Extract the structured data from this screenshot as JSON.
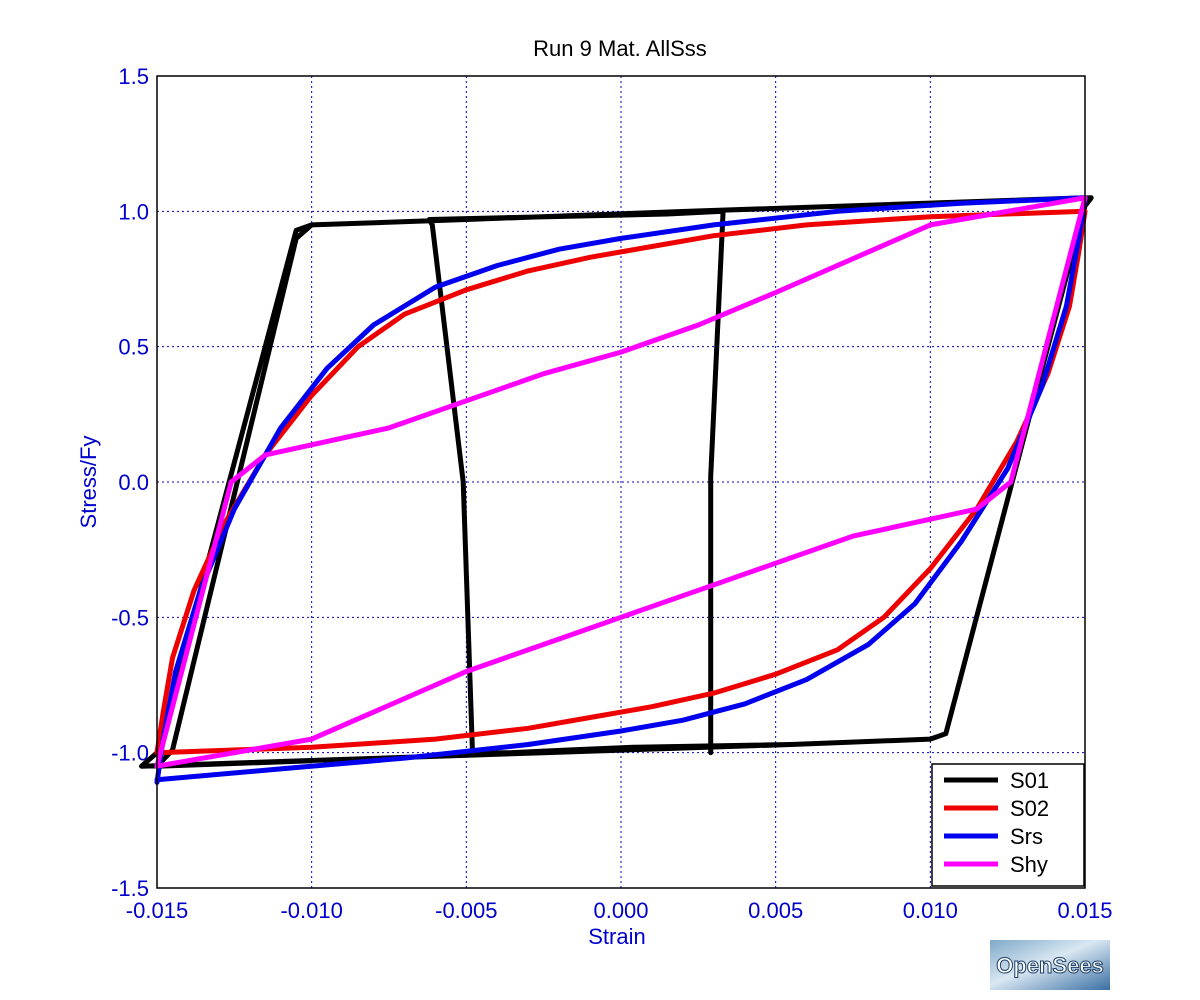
{
  "chart_data": {
    "type": "line",
    "title": "Run 9   Mat. AllSss",
    "xlabel": "Strain",
    "ylabel": "Stress/Fy",
    "xlim": [
      -0.015,
      0.015
    ],
    "ylim": [
      -1.5,
      1.5
    ],
    "xticks": [
      -0.015,
      -0.01,
      -0.005,
      0.0,
      0.005,
      0.01,
      0.015
    ],
    "xtick_labels": [
      "-0.015",
      "-0.010",
      "-0.005",
      "0.000",
      "0.005",
      "0.010",
      "0.015"
    ],
    "yticks": [
      -1.5,
      -1.0,
      -0.5,
      0.0,
      0.5,
      1.0,
      1.5
    ],
    "ytick_labels": [
      "-1.5",
      "-1.0",
      "-0.5",
      "0.0",
      "0.5",
      "1.0",
      "1.5"
    ],
    "grid": true,
    "legend_position": "bottom-right",
    "series": [
      {
        "name": "S01",
        "color": "#000000",
        "x": [
          -0.01,
          -0.015,
          -0.0145,
          -0.0105,
          -0.01,
          -0.005,
          0.0022,
          0.0152,
          0.015,
          0.0105,
          0.01,
          0.0055,
          -0.0025,
          -0.0155,
          -0.015,
          -0.0105,
          -0.01,
          -0.005,
          0.0022,
          0.015,
          0.015,
          0.0105,
          0.01,
          0.0055,
          0.0004,
          -0.0017,
          -0.0036,
          -0.0048,
          -0.0051,
          -0.0061,
          -0.0062,
          0.0015,
          0.0033,
          0.0029,
          0.0029
        ],
        "y": [
          -1.03,
          -1.05,
          -0.99,
          0.9,
          0.95,
          0.97,
          1.0,
          1.05,
          1.02,
          -0.93,
          -0.95,
          -0.97,
          -1.0,
          -1.05,
          -1.0,
          0.93,
          0.95,
          0.97,
          1.0,
          1.05,
          1.02,
          -0.93,
          -0.95,
          -0.97,
          -0.98,
          -0.99,
          -1.0,
          -1.0,
          0.0,
          0.95,
          0.97,
          0.99,
          1.0,
          0.02,
          -1.0
        ]
      },
      {
        "name": "S02",
        "color": "#ee0000",
        "x": [
          -0.015,
          -0.0148,
          -0.0145,
          -0.0138,
          -0.0128,
          -0.0115,
          -0.01,
          -0.0085,
          -0.007,
          -0.005,
          -0.003,
          -0.001,
          0.0,
          0.001,
          0.003,
          0.006,
          0.01,
          0.015,
          0.0148,
          0.0145,
          0.0138,
          0.0128,
          0.0115,
          0.01,
          0.0085,
          0.007,
          0.005,
          0.003,
          0.001,
          -0.001,
          -0.003,
          -0.006,
          -0.01,
          -0.015
        ],
        "y": [
          -1.0,
          -0.85,
          -0.65,
          -0.4,
          -0.15,
          0.1,
          0.32,
          0.5,
          0.62,
          0.71,
          0.78,
          0.83,
          0.85,
          0.87,
          0.91,
          0.95,
          0.98,
          1.0,
          0.85,
          0.65,
          0.4,
          0.15,
          -0.1,
          -0.32,
          -0.5,
          -0.62,
          -0.71,
          -0.78,
          -0.83,
          -0.87,
          -0.91,
          -0.95,
          -0.98,
          -1.0
        ]
      },
      {
        "name": "Srs",
        "color": "#0000ee",
        "x": [
          -0.015,
          -0.0148,
          -0.0144,
          -0.0136,
          -0.0125,
          -0.011,
          -0.0095,
          -0.008,
          -0.006,
          -0.004,
          -0.002,
          0.0,
          0.003,
          0.007,
          0.011,
          0.015,
          0.0148,
          0.0144,
          0.0136,
          0.0125,
          0.011,
          0.0095,
          0.008,
          0.006,
          0.004,
          0.002,
          0.0,
          -0.003,
          -0.007,
          -0.011,
          -0.015
        ],
        "y": [
          -1.11,
          -0.95,
          -0.7,
          -0.4,
          -0.1,
          0.2,
          0.42,
          0.58,
          0.72,
          0.8,
          0.86,
          0.9,
          0.95,
          1.0,
          1.03,
          1.05,
          0.9,
          0.65,
          0.35,
          0.05,
          -0.22,
          -0.45,
          -0.6,
          -0.73,
          -0.82,
          -0.88,
          -0.92,
          -0.97,
          -1.02,
          -1.06,
          -1.1
        ]
      },
      {
        "name": "Shy",
        "color": "#ff00ff",
        "x": [
          -0.015,
          -0.0126,
          -0.0115,
          -0.0075,
          -0.005,
          -0.0025,
          0.0,
          0.0025,
          0.005,
          0.01,
          0.015,
          0.0126,
          0.0115,
          0.0075,
          0.005,
          0.0025,
          0.0,
          -0.0025,
          -0.005,
          -0.01,
          -0.015
        ],
        "y": [
          -1.05,
          0.0,
          0.1,
          0.2,
          0.3,
          0.4,
          0.48,
          0.58,
          0.7,
          0.95,
          1.05,
          0.0,
          -0.1,
          -0.2,
          -0.3,
          -0.4,
          -0.5,
          -0.6,
          -0.7,
          -0.95,
          -1.05
        ]
      }
    ]
  },
  "logo": {
    "text": "OpenSees"
  }
}
